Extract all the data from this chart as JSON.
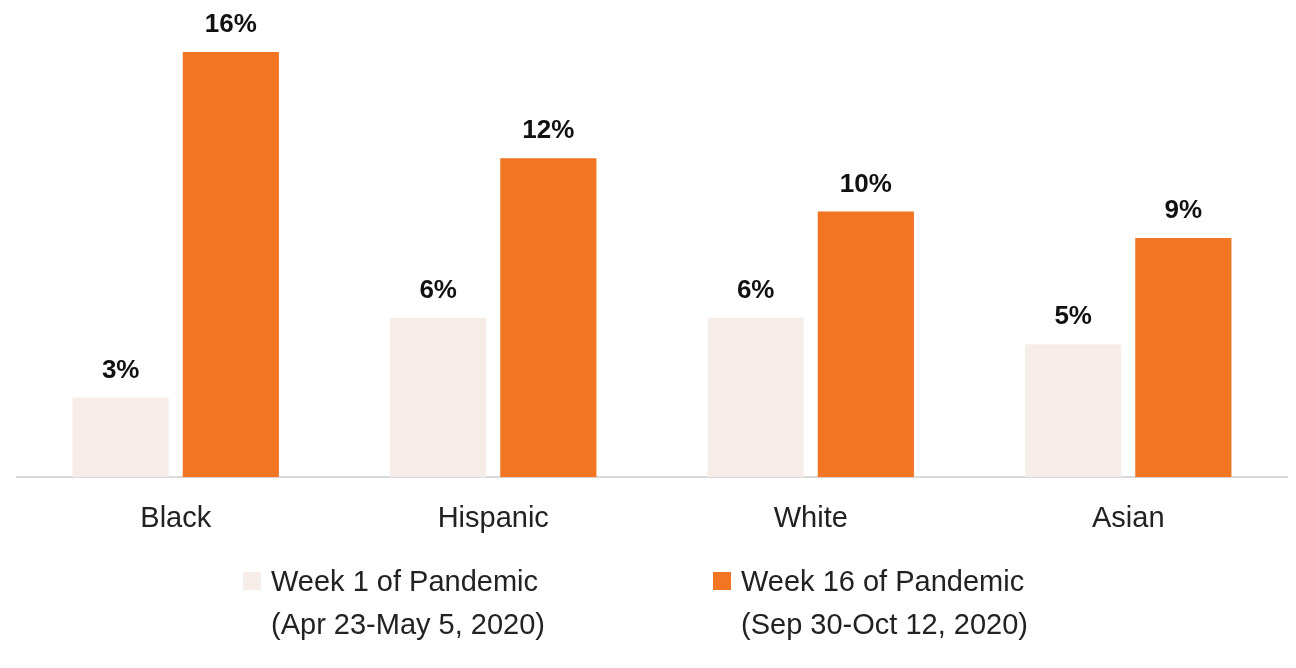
{
  "chart_data": {
    "type": "bar",
    "categories": [
      "Black",
      "Hispanic",
      "White",
      "Asian"
    ],
    "series": [
      {
        "name": "Week 1 of Pandemic (Apr 23-May 5, 2020)",
        "color": "#f7ede8",
        "values": [
          3,
          6,
          6,
          5
        ],
        "value_labels": [
          "3%",
          "6%",
          "6%",
          "5%"
        ]
      },
      {
        "name": "Week 16 of Pandemic (Sep 30-Oct 12, 2020)",
        "color": "#f27524",
        "values": [
          16,
          12,
          10,
          9
        ],
        "value_labels": [
          "16%",
          "12%",
          "10%",
          "9%"
        ]
      }
    ],
    "legend": "bottom"
  }
}
